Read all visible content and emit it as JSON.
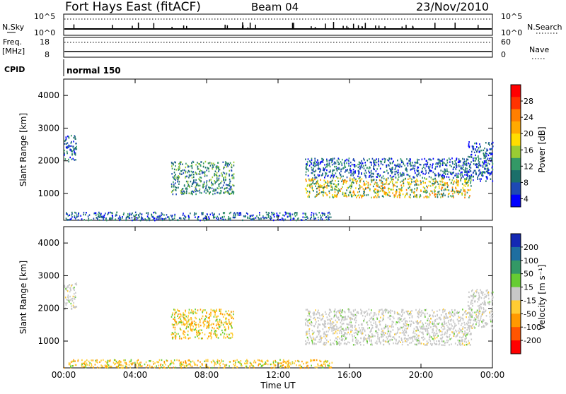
{
  "header": {
    "station": "Fort Hays East (fitACF)",
    "beam": "Beam 04",
    "date": "23/Nov/2010"
  },
  "noise_panel": {
    "left_label": "N.Sky",
    "left_ticks": [
      "10^5",
      "10^0"
    ],
    "right_ticks": [
      "10^5",
      "10^0"
    ],
    "right_label": "N.Search"
  },
  "freq_panel": {
    "left_label_top": "Freq.",
    "left_label_unit": "[MHz]",
    "left_ticks": [
      "18",
      "8"
    ],
    "right_ticks": [
      "60",
      "0"
    ],
    "right_label": "Nave"
  },
  "cpid_panel": {
    "label": "CPID",
    "value": "normal 150"
  },
  "chart_data": [
    {
      "type": "heatmap",
      "name": "power",
      "ylabel": "Slant Range [km]",
      "ylim": [
        180,
        4500
      ],
      "yticks": [
        "1000",
        "2000",
        "3000",
        "4000"
      ],
      "xticks": [
        "00:00",
        "04:00",
        "08:00",
        "12:00",
        "16:00",
        "20:00",
        "00:00"
      ],
      "xlim_hours": [
        0,
        24
      ],
      "colorbar": {
        "label": "Power [dB]",
        "ticks": [
          "28",
          "24",
          "20",
          "16",
          "12",
          "8",
          "4"
        ],
        "colors": [
          "#ff0000",
          "#ff3300",
          "#ff7f00",
          "#ffaa00",
          "#ffdd00",
          "#99cc33",
          "#339966",
          "#1b6f6a",
          "#1e49b4",
          "#0000ff"
        ]
      },
      "regions": [
        {
          "t0": 13.5,
          "t1": 22.8,
          "r0": 900,
          "r1": 1500,
          "level": "high"
        },
        {
          "t0": 13.5,
          "t1": 22.8,
          "r0": 1500,
          "r1": 2100,
          "level": "low"
        },
        {
          "t0": 6.0,
          "t1": 9.5,
          "r0": 1000,
          "r1": 2000,
          "level": "mid"
        },
        {
          "t0": 0.0,
          "t1": 0.7,
          "r0": 2000,
          "r1": 2800,
          "level": "low"
        },
        {
          "t0": 0.0,
          "t1": 15.0,
          "r0": 200,
          "r1": 450,
          "level": "low"
        },
        {
          "t0": 22.6,
          "t1": 24.0,
          "r0": 1400,
          "r1": 2600,
          "level": "low"
        }
      ]
    },
    {
      "type": "heatmap",
      "name": "velocity",
      "ylabel": "Slant Range [km]",
      "ylim": [
        180,
        4500
      ],
      "yticks": [
        "1000",
        "2000",
        "3000",
        "4000"
      ],
      "xticks": [
        "00:00",
        "04:00",
        "08:00",
        "12:00",
        "16:00",
        "20:00",
        "00:00"
      ],
      "xlabel": "Time UT",
      "xlim_hours": [
        0,
        24
      ],
      "colorbar": {
        "label": "Velocity [m s⁻¹]",
        "ticks": [
          "200",
          "100",
          "50",
          "15",
          "-15",
          "-50",
          "-100",
          "-200"
        ],
        "colors": [
          "#1428b4",
          "#1e6ea0",
          "#339966",
          "#66cc33",
          "#c8c8c8",
          "#ffcc33",
          "#ff9900",
          "#ff5500",
          "#ff0000"
        ]
      },
      "regions": [
        {
          "t0": 13.5,
          "t1": 22.8,
          "r0": 900,
          "r1": 2000,
          "level": "ground"
        },
        {
          "t0": 6.0,
          "t1": 9.5,
          "r0": 1100,
          "r1": 2000,
          "level": "neg"
        },
        {
          "t0": 0.0,
          "t1": 0.7,
          "r0": 2000,
          "r1": 2800,
          "level": "ground"
        },
        {
          "t0": 0.0,
          "t1": 15.0,
          "r0": 200,
          "r1": 450,
          "level": "neg"
        },
        {
          "t0": 22.6,
          "t1": 24.0,
          "r0": 1400,
          "r1": 2600,
          "level": "ground"
        }
      ]
    }
  ]
}
